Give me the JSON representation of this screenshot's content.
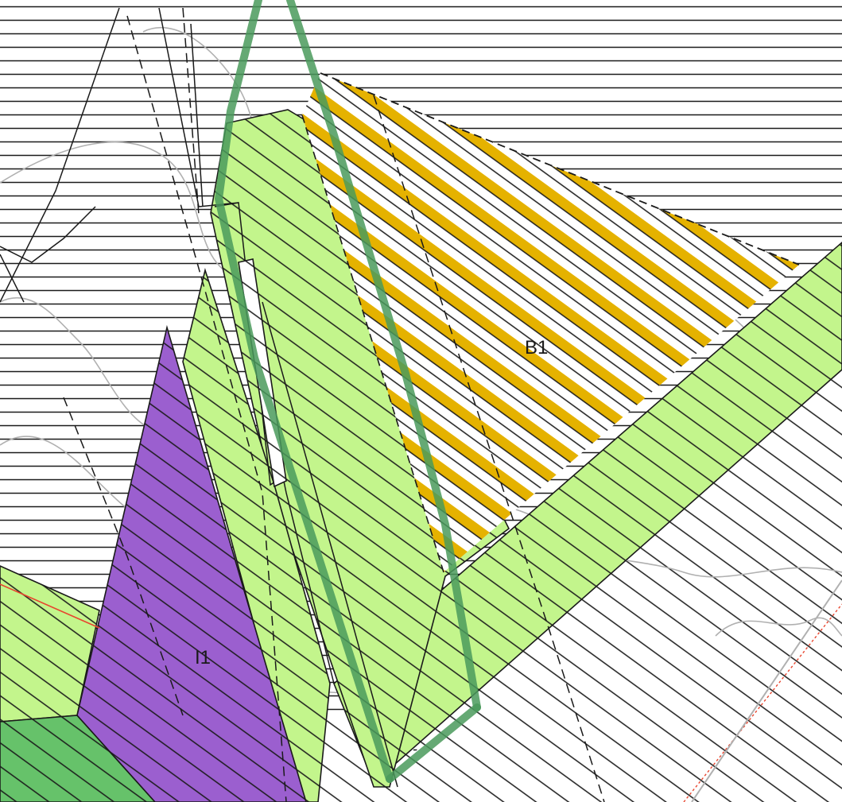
{
  "map": {
    "zones": [
      {
        "id": "B1",
        "label": "B1",
        "fill": "#e5b200"
      },
      {
        "id": "I1",
        "label": "I1",
        "fill": "#9b5fcf"
      }
    ],
    "colors": {
      "background": "#ffffff",
      "hatch": "#1a1a1a",
      "light_green": "#c3f58c",
      "dark_green": "#66c26a",
      "green_line": "#4a9a5c",
      "red_line": "#e8452e",
      "contour": "#b0b0b0"
    }
  }
}
